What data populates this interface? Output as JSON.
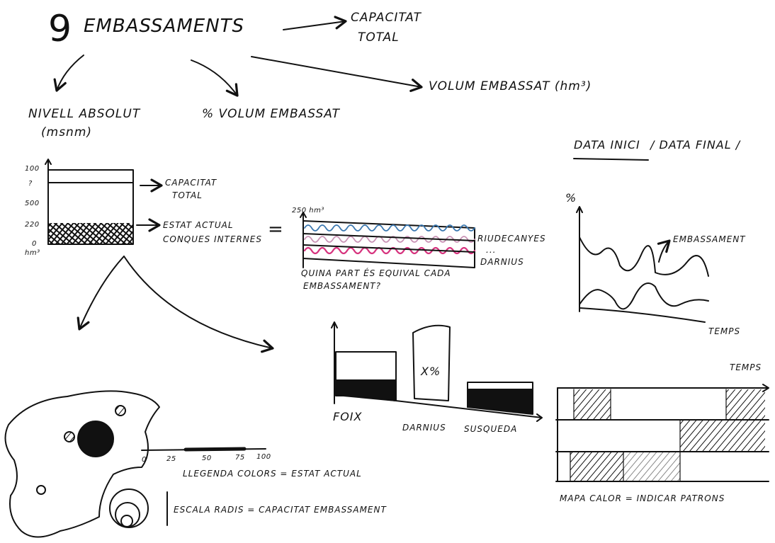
{
  "header": {
    "number": "9",
    "title": "EMBASSAMENTS",
    "capacity": [
      "CAPACITAT",
      "TOTAL"
    ],
    "volume": "VOLUM EMBASSAT (hm³)",
    "level": [
      "NIVELL ABSOLUT",
      "(msnm)"
    ],
    "percent": "% VOLUM EMBASSAT"
  },
  "dates": {
    "start": "DATA INICI",
    "end": "/ DATA FINAL /"
  },
  "level_chart": {
    "ticks": [
      "100",
      "?",
      "500",
      "220",
      "0"
    ],
    "unit": "hm³",
    "capacity": [
      "CAPACITAT",
      "TOTAL"
    ],
    "state": [
      "ESTAT ACTUAL",
      "CONQUES INTERNES"
    ],
    "equals": "="
  },
  "stack_chart": {
    "top": "250 hm³",
    "labels": [
      "RIUDECANYES",
      "...",
      "DARNIUS"
    ],
    "question": [
      "QUINA PART ÉS EQUIVAL CADA",
      "EMBASSAMENT?"
    ]
  },
  "line_chart": {
    "y": "%",
    "series": "EMBASSAMENT",
    "x": "TEMPS"
  },
  "bar_chart": {
    "mark": "X%",
    "labels": [
      "FOIX",
      "DARNIUS",
      "SUSQUEDA"
    ]
  },
  "heatmap": {
    "x": "TEMPS",
    "caption": "MAPA CALOR = INDICAR PATRONS"
  },
  "map": {
    "legend_ticks": [
      "0",
      "25",
      "50",
      "75",
      "100"
    ],
    "legend": "LLEGENDA COLORS = ESTAT ACTUAL",
    "scale": "ESCALA RADIS = CAPACITAT EMBASSAMENT"
  }
}
